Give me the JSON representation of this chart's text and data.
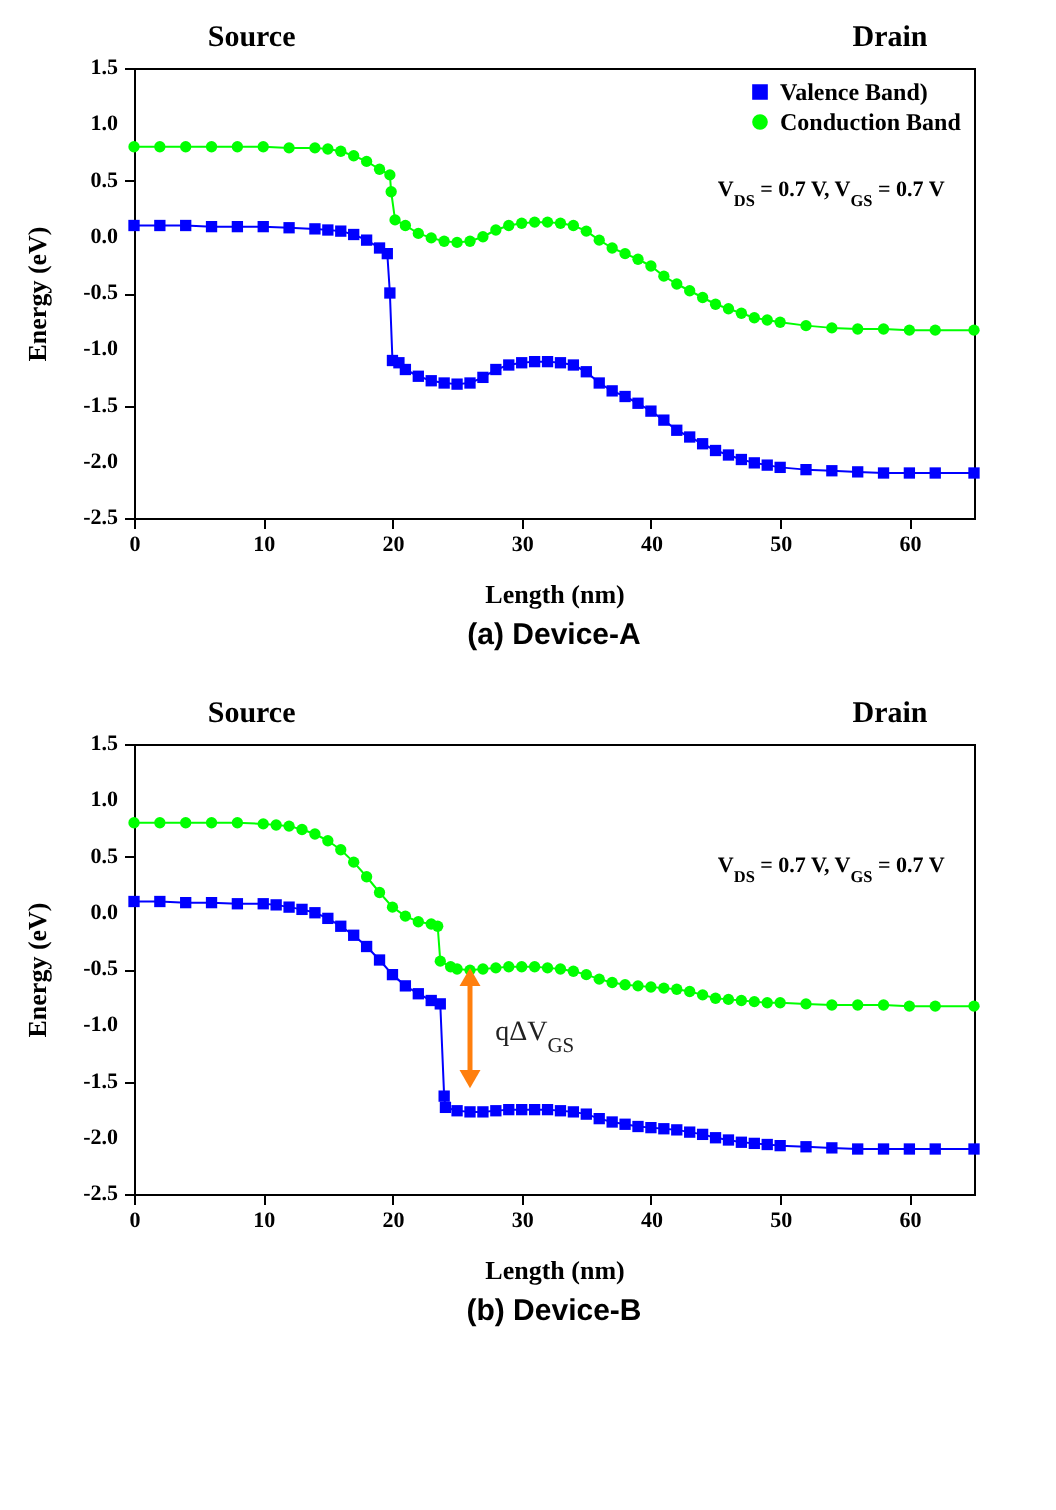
{
  "chart_data": [
    {
      "type": "line",
      "title": "(a) Device-A",
      "xlabel": "Length (nm)",
      "ylabel": "Energy (eV)",
      "annotations": [
        "Source",
        "Drain",
        "V$_{DS}$ = 0.7 V, V$_{GS}$ = 0.7 V"
      ],
      "xlim": [
        0,
        65
      ],
      "xticks": [
        0,
        10,
        20,
        30,
        40,
        50,
        60
      ],
      "ylim": [
        -2.5,
        1.5
      ],
      "yticks": [
        {
          "value": -2.5,
          "label": "-2.5"
        },
        {
          "value": -2,
          "label": "-2.0"
        },
        -1.5,
        {
          "value": -1,
          "label": "-1.0"
        },
        -0.5,
        {
          "value": 0,
          "label": "0.0"
        },
        0.5,
        {
          "value": 1,
          "label": "1.0"
        },
        1.5
      ],
      "legend": "top right",
      "series": [
        {
          "name": "Valence Band)",
          "color": "#0000ff",
          "marker": "square",
          "x": [
            0,
            2,
            4,
            6,
            8,
            10,
            12,
            14,
            15,
            16,
            17,
            18,
            19,
            19.6,
            19.8,
            20,
            20.5,
            21,
            22,
            23,
            24,
            25,
            26,
            27,
            28,
            29,
            30,
            31,
            32,
            33,
            34,
            35,
            36,
            37,
            38,
            39,
            40,
            41,
            42,
            43,
            44,
            45,
            46,
            47,
            48,
            49,
            50,
            52,
            54,
            56,
            58,
            60,
            62,
            65
          ],
          "values": [
            0.1,
            0.1,
            0.1,
            0.09,
            0.09,
            0.09,
            0.08,
            0.07,
            0.06,
            0.05,
            0.02,
            -0.03,
            -0.1,
            -0.15,
            -0.5,
            -1.1,
            -1.12,
            -1.18,
            -1.24,
            -1.28,
            -1.3,
            -1.31,
            -1.3,
            -1.25,
            -1.18,
            -1.14,
            -1.12,
            -1.11,
            -1.11,
            -1.12,
            -1.14,
            -1.2,
            -1.3,
            -1.37,
            -1.42,
            -1.48,
            -1.55,
            -1.63,
            -1.72,
            -1.78,
            -1.84,
            -1.9,
            -1.94,
            -1.98,
            -2.01,
            -2.03,
            -2.05,
            -2.07,
            -2.08,
            -2.09,
            -2.1,
            -2.1,
            -2.1,
            -2.1
          ]
        },
        {
          "name": "Conduction Band",
          "color": "#00ff00",
          "marker": "circle",
          "x": [
            0,
            2,
            4,
            6,
            8,
            10,
            12,
            14,
            15,
            16,
            17,
            18,
            19,
            19.8,
            19.9,
            20.2,
            21,
            22,
            23,
            24,
            25,
            26,
            27,
            28,
            29,
            30,
            31,
            32,
            33,
            34,
            35,
            36,
            37,
            38,
            39,
            40,
            41,
            42,
            43,
            44,
            45,
            46,
            47,
            48,
            49,
            50,
            52,
            54,
            56,
            58,
            60,
            62,
            65
          ],
          "values": [
            0.8,
            0.8,
            0.8,
            0.8,
            0.8,
            0.8,
            0.79,
            0.79,
            0.78,
            0.76,
            0.72,
            0.67,
            0.6,
            0.55,
            0.4,
            0.15,
            0.1,
            0.03,
            -0.01,
            -0.04,
            -0.05,
            -0.04,
            0,
            0.06,
            0.1,
            0.12,
            0.13,
            0.13,
            0.12,
            0.1,
            0.05,
            -0.03,
            -0.1,
            -0.15,
            -0.2,
            -0.26,
            -0.35,
            -0.42,
            -0.48,
            -0.54,
            -0.6,
            -0.64,
            -0.68,
            -0.72,
            -0.74,
            -0.76,
            -0.79,
            -0.81,
            -0.82,
            -0.82,
            -0.83,
            -0.83,
            -0.83
          ]
        }
      ]
    },
    {
      "type": "line",
      "title": "(b)  Device-B",
      "xlabel": "Length (nm)",
      "ylabel": "Energy (eV)",
      "annotations": [
        "Source",
        "Drain",
        "V$_{DS}$ = 0.7 V, V$_{GS}$ = 0.7 V",
        "qΔV$_{GS}$"
      ],
      "xlim": [
        0,
        65
      ],
      "xticks": [
        0,
        10,
        20,
        30,
        40,
        50,
        60
      ],
      "ylim": [
        -2.5,
        1.5
      ],
      "yticks": [
        {
          "value": -2.5,
          "label": "-2.5"
        },
        {
          "value": -2,
          "label": "-2.0"
        },
        -1.5,
        {
          "value": -1,
          "label": "-1.0"
        },
        -0.5,
        {
          "value": 0,
          "label": "0.0"
        },
        0.5,
        {
          "value": 1,
          "label": "1.0"
        },
        1.5
      ],
      "legend": "top right",
      "series": [
        {
          "name": "Valence Band)",
          "color": "#0000ff",
          "marker": "square",
          "x": [
            0,
            2,
            4,
            6,
            8,
            10,
            11,
            12,
            13,
            14,
            15,
            16,
            17,
            18,
            19,
            20,
            21,
            22,
            23,
            23.7,
            24,
            24.1,
            25,
            26,
            27,
            28,
            29,
            30,
            31,
            32,
            33,
            34,
            35,
            36,
            37,
            38,
            39,
            40,
            41,
            42,
            43,
            44,
            45,
            46,
            47,
            48,
            49,
            50,
            52,
            54,
            56,
            58,
            60,
            62,
            65
          ],
          "values": [
            0.1,
            0.1,
            0.09,
            0.09,
            0.08,
            0.08,
            0.07,
            0.05,
            0.03,
            0,
            -0.05,
            -0.12,
            -0.2,
            -0.3,
            -0.42,
            -0.55,
            -0.65,
            -0.72,
            -0.78,
            -0.81,
            -1.63,
            -1.73,
            -1.76,
            -1.77,
            -1.77,
            -1.76,
            -1.75,
            -1.75,
            -1.75,
            -1.75,
            -1.76,
            -1.77,
            -1.79,
            -1.83,
            -1.86,
            -1.88,
            -1.9,
            -1.91,
            -1.92,
            -1.93,
            -1.95,
            -1.97,
            -2,
            -2.02,
            -2.04,
            -2.05,
            -2.06,
            -2.07,
            -2.08,
            -2.09,
            -2.1,
            -2.1,
            -2.1,
            -2.1,
            -2.1
          ]
        },
        {
          "name": "Conduction Band",
          "color": "#00ff00",
          "marker": "circle",
          "x": [
            0,
            2,
            4,
            6,
            8,
            10,
            11,
            12,
            13,
            14,
            15,
            16,
            17,
            18,
            19,
            20,
            21,
            22,
            23,
            23.5,
            23.7,
            24.5,
            25,
            26,
            27,
            28,
            29,
            30,
            31,
            32,
            33,
            34,
            35,
            36,
            37,
            38,
            39,
            40,
            41,
            42,
            43,
            44,
            45,
            46,
            47,
            48,
            49,
            50,
            52,
            54,
            56,
            58,
            60,
            62,
            65
          ],
          "values": [
            0.8,
            0.8,
            0.8,
            0.8,
            0.8,
            0.79,
            0.78,
            0.77,
            0.74,
            0.7,
            0.64,
            0.56,
            0.45,
            0.32,
            0.18,
            0.05,
            -0.03,
            -0.08,
            -0.1,
            -0.12,
            -0.43,
            -0.48,
            -0.5,
            -0.51,
            -0.5,
            -0.49,
            -0.48,
            -0.48,
            -0.48,
            -0.49,
            -0.5,
            -0.52,
            -0.55,
            -0.59,
            -0.62,
            -0.64,
            -0.65,
            -0.66,
            -0.67,
            -0.68,
            -0.7,
            -0.73,
            -0.76,
            -0.77,
            -0.78,
            -0.79,
            -0.8,
            -0.8,
            -0.81,
            -0.82,
            -0.82,
            -0.82,
            -0.83,
            -0.83,
            -0.83
          ]
        }
      ]
    }
  ]
}
